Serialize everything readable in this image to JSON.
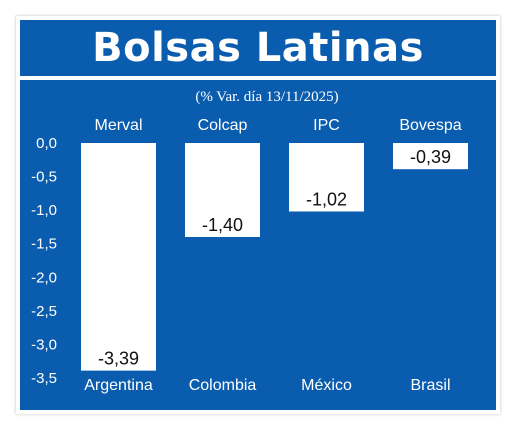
{
  "chart_data": {
    "type": "bar",
    "title": "Bolsas Latinas",
    "subtitle": "(% Var. día 13/11/2025)",
    "index_names": [
      "Merval",
      "Colcap",
      "IPC",
      "Bovespa"
    ],
    "categories": [
      "Argentina",
      "Colombia",
      "México",
      "Brasil"
    ],
    "values": [
      -3.39,
      -1.4,
      -1.02,
      -0.39
    ],
    "value_labels": [
      "-3,39",
      "-1,40",
      "-1,02",
      "-0,39"
    ],
    "ylim": [
      -3.5,
      0.0
    ],
    "yticks": [
      0.0,
      -0.5,
      -1.0,
      -1.5,
      -2.0,
      -2.5,
      -3.0,
      -3.5
    ],
    "ytick_labels": [
      "0,0",
      "-0,5",
      "-1,0",
      "-1,5",
      "-2,0",
      "-2,5",
      "-3,0",
      "-3,5"
    ],
    "grid": false,
    "colors": {
      "background": "#0a5cae",
      "bar": "#ffffff",
      "text": "#ffffff",
      "value_text": "#111111"
    }
  }
}
